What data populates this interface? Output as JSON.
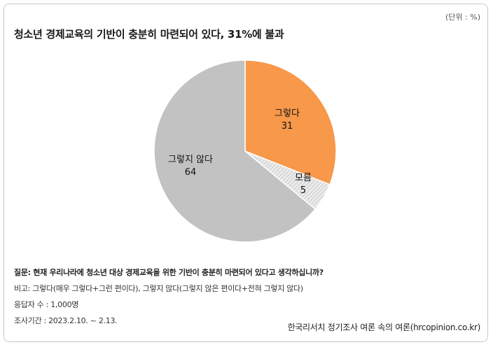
{
  "unit_label": "(단위 : %)",
  "title": "청소년 경제교육의 기반이 충분히 마련되어 있다, 31%에 불과",
  "chart_data": {
    "type": "pie",
    "title": "청소년 경제교육의 기반이 충분히 마련되어 있다, 31%에 불과",
    "slices": [
      {
        "label": "그렇다",
        "value": 31,
        "color": "#f7984a",
        "pattern": "solid"
      },
      {
        "label": "모름",
        "value": 5,
        "color": "#e3e3e3",
        "pattern": "hatched"
      },
      {
        "label": "그렇지 않다",
        "value": 64,
        "color": "#c2c2c2",
        "pattern": "solid"
      }
    ],
    "unit": "%",
    "legend": "none"
  },
  "notes": {
    "question": "질문: 현재 우리나라에 청소년 대상 경제교육을 위한 기반이 충분히 마련되어 있다고 생각하십니까?",
    "note": "비고: 그렇다(매우 그렇다+그런 편이다), 그렇지 않다(그렇지 않은 편이다+전혀 그렇지 않다)",
    "respondents": "응답자 수 : 1,000명",
    "period": "조사기간 : 2023.2.10. ~ 2.13."
  },
  "source": "한국리서치 정기조사 여론 속의 여론(hrcopinion.co.kr)"
}
